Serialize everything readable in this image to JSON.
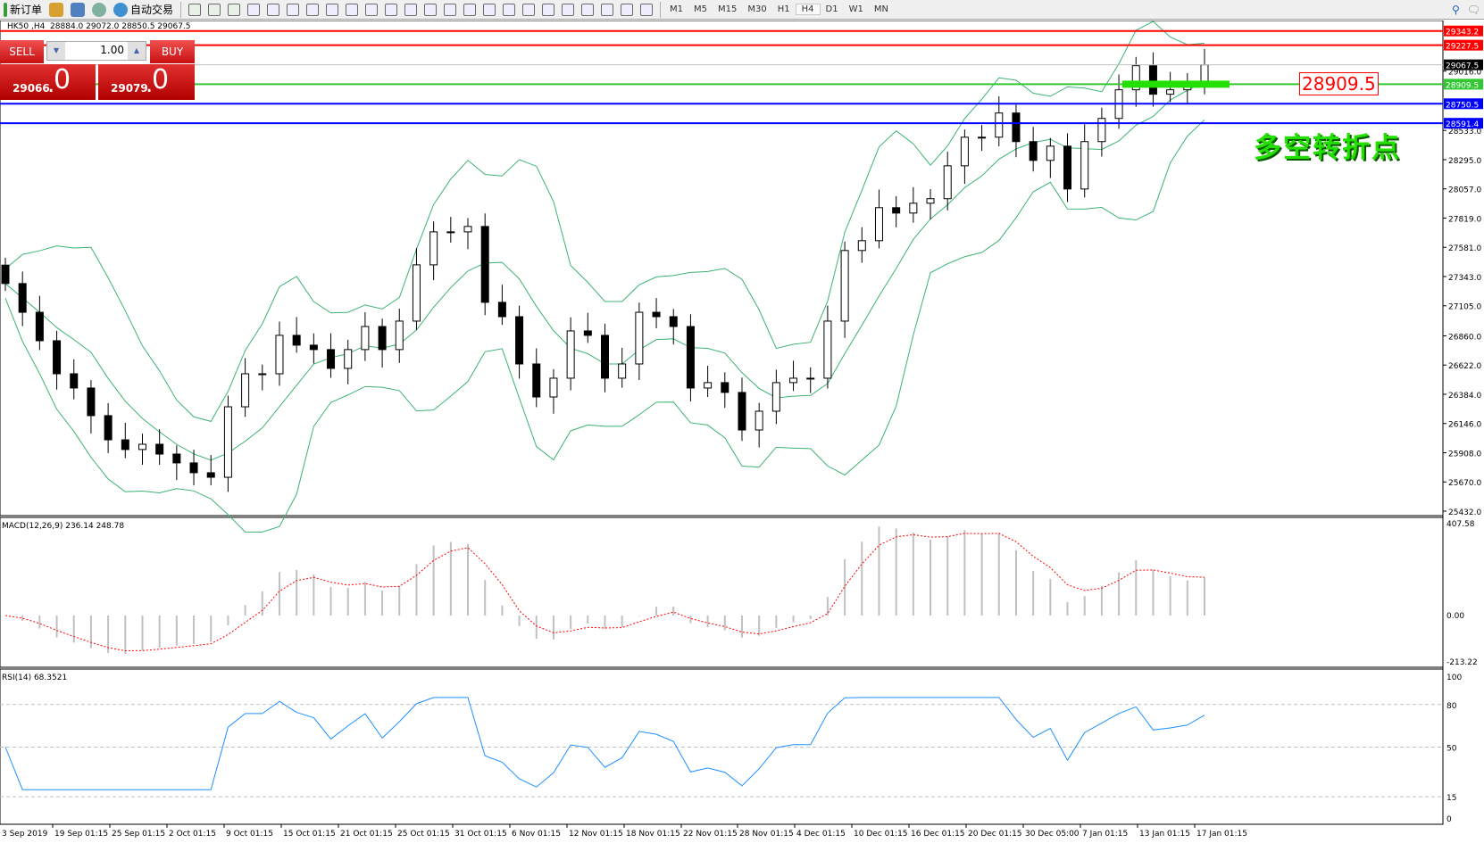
{
  "toolbar": {
    "new_order": "新订单",
    "auto_trading": "自动交易",
    "timeframes": [
      "M1",
      "M5",
      "M15",
      "M30",
      "H1",
      "H4",
      "D1",
      "W1",
      "MN"
    ],
    "active_timeframe": "H4",
    "icons": [
      "history-center-icon",
      "market-watch-icon",
      "signals-icon",
      "bar-chart-icon",
      "candlestick-chart-icon",
      "line-chart-icon",
      "zoom-in-icon",
      "zoom-out-icon",
      "tile-windows-icon",
      "auto-scroll-icon",
      "chart-shift-icon",
      "indicators-icon",
      "periods-icon",
      "templates-icon",
      "cursor-icon",
      "crosshair-icon",
      "vertical-line-icon",
      "horizontal-line-icon",
      "trendline-icon",
      "fibonacci-icon",
      "fibo-fan-icon",
      "text-icon",
      "text-label-icon",
      "arrows-icon"
    ]
  },
  "header": {
    "text": "HK50 ,H4  28884.0 29072.0 28850.5 29067.5"
  },
  "trade_panel": {
    "sell": "SELL",
    "buy": "BUY",
    "lot": "1.00",
    "sell_price_main": "29066",
    "sell_price_big": "0",
    "buy_price_main": "29079",
    "buy_price_big": "0",
    "accent": "#d42020"
  },
  "annotation": {
    "text": "多空转折点",
    "level_label": "28909.5",
    "color": "#22e000"
  },
  "chart_data": {
    "type": "candlestick",
    "symbol": "HK50",
    "timeframe": "H4",
    "ylim": [
      25432.0,
      29343.2
    ],
    "price_ticks": [
      "29016.0",
      "28533.0",
      "28295.0",
      "28057.0",
      "27819.0",
      "27581.0",
      "27343.0",
      "27105.0",
      "26860.0",
      "26622.0",
      "26384.0",
      "26146.0",
      "25908.0",
      "25670.0",
      "25432.0"
    ],
    "closes": [
      27286,
      27052,
      26820,
      26551,
      26435,
      26210,
      26013,
      25934,
      25977,
      25897,
      25825,
      25745,
      25708,
      26282,
      26551,
      26551,
      26864,
      26784,
      26748,
      26595,
      26748,
      26936,
      26748,
      26980,
      27438,
      27707,
      27707,
      27751,
      27133,
      27016,
      26631,
      26362,
      26515,
      26900,
      26864,
      26515,
      26631,
      27052,
      27016,
      26936,
      26435,
      26479,
      26399,
      26093,
      26246,
      26479,
      26515,
      26515,
      26980,
      27555,
      27635,
      27904,
      27860,
      27940,
      27977,
      28245,
      28478,
      28478,
      28675,
      28442,
      28289,
      28405,
      28056,
      28442,
      28631,
      28864,
      29060,
      28828,
      28864,
      28907,
      29067.5
    ],
    "levels": [
      {
        "price": "29343.2",
        "color": "#ff0000",
        "text_color": "#ffffff"
      },
      {
        "price": "29227.5",
        "color": "#ff0000",
        "text_color": "#ffffff"
      },
      {
        "price": "29067.5",
        "color": "#c0c0c0",
        "label_bg": "#000000",
        "text_color": "#ffffff"
      },
      {
        "price": "28909.5",
        "color": "#32c832",
        "text_color": "#ffffff"
      },
      {
        "price": "28750.5",
        "color": "#0000ff",
        "text_color": "#ffffff"
      },
      {
        "price": "28591.4",
        "color": "#0000ff",
        "text_color": "#ffffff"
      }
    ],
    "time_labels": [
      "3 Sep 2019",
      "19 Sep 01:15",
      "25 Sep 01:15",
      "2 Oct 01:15",
      "9 Oct 01:15",
      "15 Oct 01:15",
      "21 Oct 01:15",
      "25 Oct 01:15",
      "31 Oct 01:15",
      "6 Nov 01:15",
      "12 Nov 01:15",
      "18 Nov 01:15",
      "22 Nov 01:15",
      "28 Nov 01:15",
      "4 Dec 01:15",
      "10 Dec 01:15",
      "16 Dec 01:15",
      "20 Dec 01:15",
      "30 Dec 05:00",
      "7 Jan 01:15",
      "13 Jan 01:15",
      "17 Jan 01:15"
    ],
    "bollinger_color": "#3cb371",
    "macd": {
      "label": "MACD(12,26,9) 236.14 248.78",
      "ticks": [
        "407.58",
        "0.00",
        "-213.22"
      ],
      "ylim": [
        -213.22,
        407.58
      ],
      "histogram_color": "#c0c0c0",
      "signal_color": "#ff0000"
    },
    "rsi": {
      "label": "RSI(14) 68.3521",
      "ticks": [
        "100",
        "80",
        "50",
        "15",
        "0"
      ],
      "levels": [
        80,
        50,
        15
      ],
      "color": "#1e90ff"
    }
  }
}
